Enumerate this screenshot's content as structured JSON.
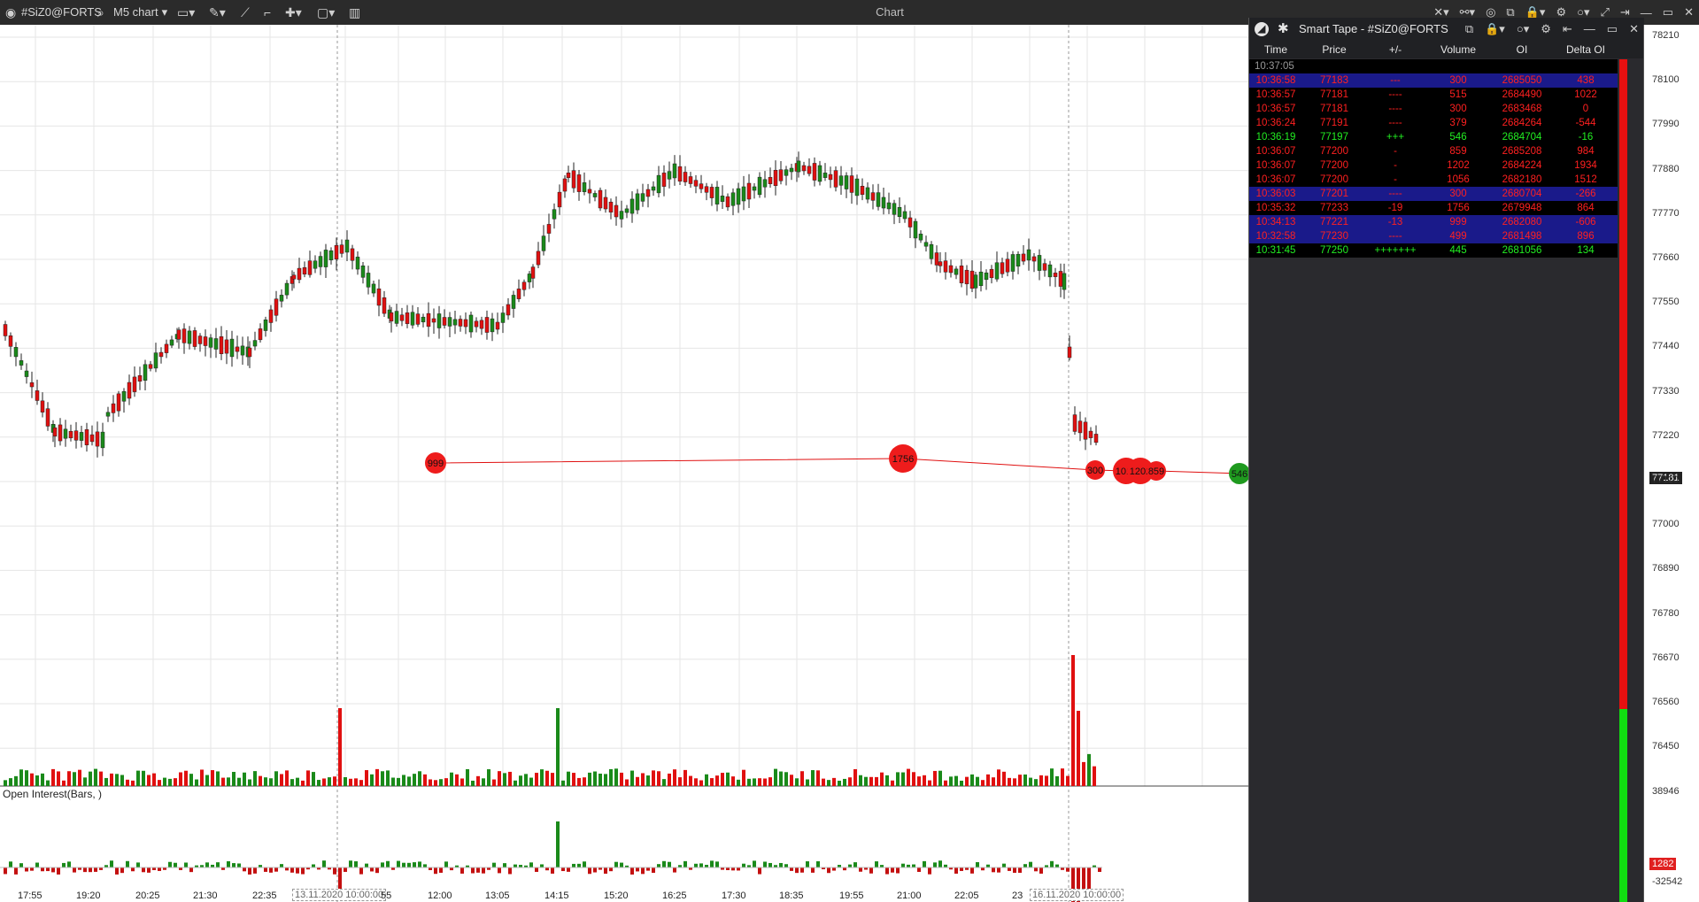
{
  "titlebar": {
    "symbol": "#SiZ0@FORTS",
    "chart_type": "M5 chart",
    "window_title": "Chart"
  },
  "price_axis": {
    "labels": [
      "78210",
      "78100",
      "77990",
      "77880",
      "77770",
      "77660",
      "77550",
      "77440",
      "77330",
      "77220",
      "77110",
      "77000",
      "76890",
      "76780",
      "76670",
      "76560",
      "76450"
    ],
    "current_price": "77181"
  },
  "oi_axis": {
    "top_label": "38946",
    "bottom_label": "-32542",
    "current_value": "1282"
  },
  "time_axis": {
    "labels": [
      "17:55",
      "19:20",
      "20:25",
      "21:30",
      "22:35",
      "13.11.2020 10:00:00",
      "55",
      "12:00",
      "13:05",
      "14:15",
      "15:20",
      "16:25",
      "17:30",
      "18:35",
      "19:55",
      "21:00",
      "22:05",
      "23",
      "16.11.2020 10:00:00"
    ]
  },
  "oi_panel": {
    "title": "Open Interest(Bars, )"
  },
  "bubbles": [
    {
      "label": "999",
      "color": "red"
    },
    {
      "label": "1756",
      "color": "red"
    },
    {
      "label": "300",
      "color": "red"
    },
    {
      "label": "1012",
      "color": "red"
    },
    {
      "label": "1202",
      "color": "red"
    },
    {
      "label": "859",
      "color": "red"
    },
    {
      "label": "546",
      "color": "green"
    }
  ],
  "smart_tape": {
    "title": "Smart Tape - #SiZ0@FORTS",
    "columns": [
      "Time",
      "Price",
      "+/-",
      "Volume",
      "OI",
      "Delta OI"
    ],
    "header_time": "10:37:05",
    "rows": [
      {
        "time": "10:36:58",
        "price": "77183",
        "change": "---",
        "volume": "300",
        "oi": "2685050",
        "delta": "438",
        "color": "#ff2020",
        "bg": "#1a1a8a"
      },
      {
        "time": "10:36:57",
        "price": "77181",
        "change": "----",
        "volume": "515",
        "oi": "2684490",
        "delta": "1022",
        "color": "#ff2020",
        "bg": "#000000"
      },
      {
        "time": "10:36:57",
        "price": "77181",
        "change": "----",
        "volume": "300",
        "oi": "2683468",
        "delta": "0",
        "color": "#ff2020",
        "bg": "#000000"
      },
      {
        "time": "10:36:24",
        "price": "77191",
        "change": "----",
        "volume": "379",
        "oi": "2684264",
        "delta": "-544",
        "color": "#ff2020",
        "bg": "#000000"
      },
      {
        "time": "10:36:19",
        "price": "77197",
        "change": "+++",
        "volume": "546",
        "oi": "2684704",
        "delta": "-16",
        "color": "#22ee22",
        "bg": "#000000"
      },
      {
        "time": "10:36:07",
        "price": "77200",
        "change": "-",
        "volume": "859",
        "oi": "2685208",
        "delta": "984",
        "color": "#ff2020",
        "bg": "#000000"
      },
      {
        "time": "10:36:07",
        "price": "77200",
        "change": "-",
        "volume": "1202",
        "oi": "2684224",
        "delta": "1934",
        "color": "#ff2020",
        "bg": "#000000"
      },
      {
        "time": "10:36:07",
        "price": "77200",
        "change": "-",
        "volume": "1056",
        "oi": "2682180",
        "delta": "1512",
        "color": "#ff2020",
        "bg": "#000000"
      },
      {
        "time": "10:36:03",
        "price": "77201",
        "change": "----",
        "volume": "300",
        "oi": "2680704",
        "delta": "-266",
        "color": "#ff2020",
        "bg": "#1a1a8a"
      },
      {
        "time": "10:35:32",
        "price": "77233",
        "change": "-19",
        "volume": "1756",
        "oi": "2679948",
        "delta": "864",
        "color": "#ff2020",
        "bg": "#000000"
      },
      {
        "time": "10:34:13",
        "price": "77221",
        "change": "-13",
        "volume": "999",
        "oi": "2682080",
        "delta": "-606",
        "color": "#ff2020",
        "bg": "#1a1a8a"
      },
      {
        "time": "10:32:58",
        "price": "77230",
        "change": "----",
        "volume": "499",
        "oi": "2681498",
        "delta": "896",
        "color": "#ff2020",
        "bg": "#1a1a8a"
      },
      {
        "time": "10:31:45",
        "price": "77250",
        "change": "+++++++",
        "volume": "445",
        "oi": "2681056",
        "delta": "134",
        "color": "#22ee22",
        "bg": "#000000"
      }
    ]
  }
}
